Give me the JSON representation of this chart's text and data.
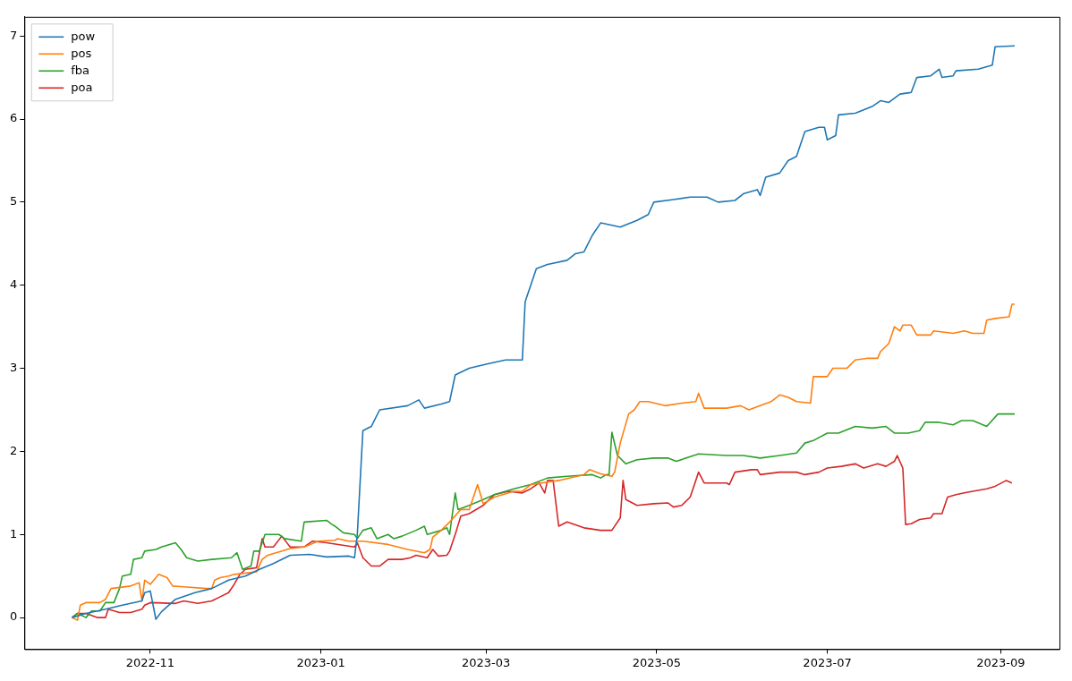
{
  "chart_data": {
    "type": "line",
    "xlim": [
      "2022-09-17",
      "2023-09-22"
    ],
    "ylim": [
      -0.38,
      7.23
    ],
    "xticks": [
      {
        "value": "2022-11-01",
        "label": "2022-11"
      },
      {
        "value": "2023-01-01",
        "label": "2023-01"
      },
      {
        "value": "2023-03-01",
        "label": "2023-03"
      },
      {
        "value": "2023-05-01",
        "label": "2023-05"
      },
      {
        "value": "2023-07-01",
        "label": "2023-07"
      },
      {
        "value": "2023-09-01",
        "label": "2023-09"
      }
    ],
    "yticks": [
      0,
      1,
      2,
      3,
      4,
      5,
      6,
      7
    ],
    "grid": false,
    "legend": "top left",
    "marker": "none",
    "line_style": "solid",
    "series": [
      {
        "name": "pow",
        "color": "#1f77b4",
        "x": [
          "2022-10-04",
          "2022-10-09",
          "2022-10-16",
          "2022-10-22",
          "2022-10-29",
          "2022-10-30",
          "2022-11-01",
          "2022-11-03",
          "2022-11-05",
          "2022-11-10",
          "2022-11-17",
          "2022-11-23",
          "2022-11-29",
          "2022-12-05",
          "2022-12-10",
          "2022-12-15",
          "2022-12-21",
          "2022-12-28",
          "2023-01-03",
          "2023-01-11",
          "2023-01-13",
          "2023-01-14",
          "2023-01-16",
          "2023-01-19",
          "2023-01-22",
          "2023-02-01",
          "2023-02-05",
          "2023-02-07",
          "2023-02-13",
          "2023-02-16",
          "2023-02-18",
          "2023-02-23",
          "2023-03-01",
          "2023-03-08",
          "2023-03-14",
          "2023-03-15",
          "2023-03-19",
          "2023-03-23",
          "2023-03-30",
          "2023-04-02",
          "2023-04-05",
          "2023-04-08",
          "2023-04-11",
          "2023-04-18",
          "2023-04-24",
          "2023-04-28",
          "2023-04-30",
          "2023-05-07",
          "2023-05-13",
          "2023-05-19",
          "2023-05-23",
          "2023-05-29",
          "2023-06-01",
          "2023-06-06",
          "2023-06-07",
          "2023-06-09",
          "2023-06-14",
          "2023-06-17",
          "2023-06-20",
          "2023-06-23",
          "2023-06-28",
          "2023-06-30",
          "2023-07-01",
          "2023-07-04",
          "2023-07-05",
          "2023-07-11",
          "2023-07-17",
          "2023-07-20",
          "2023-07-23",
          "2023-07-27",
          "2023-07-31",
          "2023-08-02",
          "2023-08-07",
          "2023-08-10",
          "2023-08-11",
          "2023-08-15",
          "2023-08-16",
          "2023-08-24",
          "2023-08-29",
          "2023-08-30",
          "2023-09-06"
        ],
        "values": [
          0,
          0.05,
          0.1,
          0.15,
          0.2,
          0.3,
          0.32,
          -0.02,
          0.07,
          0.22,
          0.3,
          0.35,
          0.45,
          0.5,
          0.58,
          0.65,
          0.75,
          0.76,
          0.73,
          0.74,
          0.72,
          1.0,
          2.25,
          2.3,
          2.5,
          2.55,
          2.62,
          2.52,
          2.57,
          2.6,
          2.92,
          3.0,
          3.05,
          3.1,
          3.1,
          3.8,
          4.2,
          4.25,
          4.3,
          4.38,
          4.4,
          4.6,
          4.75,
          4.7,
          4.78,
          4.85,
          5.0,
          5.03,
          5.06,
          5.06,
          5.0,
          5.02,
          5.1,
          5.15,
          5.08,
          5.3,
          5.35,
          5.5,
          5.55,
          5.85,
          5.9,
          5.9,
          5.75,
          5.8,
          6.05,
          6.07,
          6.15,
          6.22,
          6.2,
          6.3,
          6.32,
          6.5,
          6.52,
          6.6,
          6.5,
          6.52,
          6.58,
          6.6,
          6.65,
          6.87,
          6.88
        ]
      },
      {
        "name": "pos",
        "color": "#ff7f0e",
        "x": [
          "2022-10-04",
          "2022-10-06",
          "2022-10-07",
          "2022-10-09",
          "2022-10-14",
          "2022-10-16",
          "2022-10-18",
          "2022-10-25",
          "2022-10-28",
          "2022-10-29",
          "2022-10-30",
          "2022-11-01",
          "2022-11-04",
          "2022-11-07",
          "2022-11-09",
          "2022-11-13",
          "2022-11-21",
          "2022-11-23",
          "2022-11-24",
          "2022-11-26",
          "2022-11-29",
          "2022-12-01",
          "2022-12-09",
          "2022-12-11",
          "2022-12-13",
          "2022-12-21",
          "2022-12-26",
          "2022-12-31",
          "2023-01-06",
          "2023-01-07",
          "2023-01-11",
          "2023-01-16",
          "2023-01-25",
          "2023-02-01",
          "2023-02-07",
          "2023-02-09",
          "2023-02-10",
          "2023-02-13",
          "2023-02-16",
          "2023-02-20",
          "2023-02-23",
          "2023-02-26",
          "2023-02-28",
          "2023-03-04",
          "2023-03-11",
          "2023-03-14",
          "2023-03-17",
          "2023-03-27",
          "2023-04-05",
          "2023-04-07",
          "2023-04-11",
          "2023-04-15",
          "2023-04-16",
          "2023-04-18",
          "2023-04-21",
          "2023-04-23",
          "2023-04-25",
          "2023-04-28",
          "2023-05-04",
          "2023-05-10",
          "2023-05-15",
          "2023-05-16",
          "2023-05-18",
          "2023-05-26",
          "2023-05-31",
          "2023-06-03",
          "2023-06-07",
          "2023-06-11",
          "2023-06-14",
          "2023-06-17",
          "2023-06-20",
          "2023-06-25",
          "2023-06-26",
          "2023-07-01",
          "2023-07-03",
          "2023-07-08",
          "2023-07-11",
          "2023-07-15",
          "2023-07-19",
          "2023-07-20",
          "2023-07-23",
          "2023-07-25",
          "2023-07-27",
          "2023-07-28",
          "2023-07-31",
          "2023-08-02",
          "2023-08-07",
          "2023-08-08",
          "2023-08-15",
          "2023-08-19",
          "2023-08-22",
          "2023-08-26",
          "2023-08-27",
          "2023-08-30",
          "2023-09-04",
          "2023-09-05",
          "2023-09-06"
        ],
        "values": [
          0,
          -0.03,
          0.15,
          0.18,
          0.18,
          0.22,
          0.35,
          0.38,
          0.42,
          0.2,
          0.45,
          0.4,
          0.52,
          0.48,
          0.38,
          0.37,
          0.35,
          0.35,
          0.45,
          0.48,
          0.5,
          0.52,
          0.55,
          0.7,
          0.75,
          0.83,
          0.85,
          0.92,
          0.93,
          0.95,
          0.92,
          0.92,
          0.88,
          0.82,
          0.78,
          0.82,
          0.97,
          1.05,
          1.15,
          1.3,
          1.3,
          1.6,
          1.37,
          1.45,
          1.52,
          1.52,
          1.6,
          1.65,
          1.72,
          1.78,
          1.73,
          1.7,
          1.75,
          2.1,
          2.45,
          2.5,
          2.6,
          2.6,
          2.55,
          2.58,
          2.6,
          2.7,
          2.52,
          2.52,
          2.55,
          2.5,
          2.55,
          2.6,
          2.68,
          2.65,
          2.6,
          2.58,
          2.9,
          2.9,
          3.0,
          3.0,
          3.1,
          3.12,
          3.12,
          3.2,
          3.3,
          3.5,
          3.45,
          3.52,
          3.52,
          3.4,
          3.4,
          3.45,
          3.42,
          3.45,
          3.42,
          3.42,
          3.58,
          3.6,
          3.62,
          3.77,
          3.77
        ]
      },
      {
        "name": "fba",
        "color": "#2ca02c",
        "x": [
          "2022-10-04",
          "2022-10-06",
          "2022-10-09",
          "2022-10-11",
          "2022-10-14",
          "2022-10-16",
          "2022-10-19",
          "2022-10-21",
          "2022-10-22",
          "2022-10-25",
          "2022-10-26",
          "2022-10-29",
          "2022-10-30",
          "2022-11-03",
          "2022-11-05",
          "2022-11-10",
          "2022-11-12",
          "2022-11-14",
          "2022-11-18",
          "2022-11-23",
          "2022-11-30",
          "2022-12-02",
          "2022-12-04",
          "2022-12-07",
          "2022-12-08",
          "2022-12-10",
          "2022-12-12",
          "2022-12-17",
          "2022-12-19",
          "2022-12-25",
          "2022-12-26",
          "2023-01-03",
          "2023-01-05",
          "2023-01-06",
          "2023-01-09",
          "2023-01-13",
          "2023-01-14",
          "2023-01-16",
          "2023-01-19",
          "2023-01-21",
          "2023-01-25",
          "2023-01-27",
          "2023-01-30",
          "2023-02-04",
          "2023-02-07",
          "2023-02-08",
          "2023-02-13",
          "2023-02-15",
          "2023-02-16",
          "2023-02-18",
          "2023-02-19",
          "2023-02-23",
          "2023-02-28",
          "2023-03-04",
          "2023-03-11",
          "2023-03-17",
          "2023-03-23",
          "2023-03-30",
          "2023-04-08",
          "2023-04-11",
          "2023-04-13",
          "2023-04-14",
          "2023-04-15",
          "2023-04-17",
          "2023-04-20",
          "2023-04-24",
          "2023-04-30",
          "2023-05-05",
          "2023-05-08",
          "2023-05-16",
          "2023-05-26",
          "2023-06-01",
          "2023-06-07",
          "2023-06-14",
          "2023-06-20",
          "2023-06-23",
          "2023-06-26",
          "2023-07-01",
          "2023-07-05",
          "2023-07-11",
          "2023-07-17",
          "2023-07-22",
          "2023-07-25",
          "2023-07-30",
          "2023-08-03",
          "2023-08-05",
          "2023-08-10",
          "2023-08-15",
          "2023-08-18",
          "2023-08-22",
          "2023-08-27",
          "2023-08-31",
          "2023-09-06"
        ],
        "values": [
          0,
          0.05,
          0,
          0.08,
          0.08,
          0.18,
          0.18,
          0.35,
          0.5,
          0.52,
          0.7,
          0.72,
          0.8,
          0.82,
          0.85,
          0.9,
          0.82,
          0.72,
          0.68,
          0.7,
          0.72,
          0.78,
          0.58,
          0.62,
          0.8,
          0.8,
          1.0,
          1.0,
          0.95,
          0.92,
          1.15,
          1.17,
          1.12,
          1.1,
          1.02,
          1.0,
          0.95,
          1.05,
          1.08,
          0.95,
          1.0,
          0.95,
          0.98,
          1.05,
          1.1,
          1.0,
          1.05,
          1.08,
          1.0,
          1.5,
          1.3,
          1.35,
          1.42,
          1.48,
          1.55,
          1.6,
          1.68,
          1.7,
          1.72,
          1.68,
          1.72,
          1.72,
          2.23,
          1.95,
          1.85,
          1.9,
          1.92,
          1.92,
          1.88,
          1.97,
          1.95,
          1.95,
          1.92,
          1.95,
          1.98,
          2.1,
          2.13,
          2.22,
          2.22,
          2.3,
          2.28,
          2.3,
          2.22,
          2.22,
          2.25,
          2.35,
          2.35,
          2.32,
          2.37,
          2.37,
          2.3,
          2.45,
          2.45
        ]
      },
      {
        "name": "poa",
        "color": "#d62728",
        "x": [
          "2022-10-04",
          "2022-10-06",
          "2022-10-09",
          "2022-10-13",
          "2022-10-16",
          "2022-10-17",
          "2022-10-21",
          "2022-10-25",
          "2022-10-29",
          "2022-10-30",
          "2022-11-01",
          "2022-11-10",
          "2022-11-13",
          "2022-11-18",
          "2022-11-23",
          "2022-11-26",
          "2022-11-29",
          "2022-12-01",
          "2022-12-03",
          "2022-12-05",
          "2022-12-09",
          "2022-12-11",
          "2022-12-12",
          "2022-12-15",
          "2022-12-18",
          "2022-12-21",
          "2022-12-26",
          "2022-12-29",
          "2023-01-03",
          "2023-01-13",
          "2023-01-14",
          "2023-01-16",
          "2023-01-19",
          "2023-01-22",
          "2023-01-25",
          "2023-01-30",
          "2023-02-02",
          "2023-02-04",
          "2023-02-08",
          "2023-02-10",
          "2023-02-12",
          "2023-02-15",
          "2023-02-16",
          "2023-02-18",
          "2023-02-20",
          "2023-02-23",
          "2023-02-28",
          "2023-03-04",
          "2023-03-09",
          "2023-03-14",
          "2023-03-17",
          "2023-03-20",
          "2023-03-22",
          "2023-03-23",
          "2023-03-25",
          "2023-03-27",
          "2023-03-30",
          "2023-04-05",
          "2023-04-11",
          "2023-04-15",
          "2023-04-18",
          "2023-04-19",
          "2023-04-20",
          "2023-04-24",
          "2023-04-30",
          "2023-05-05",
          "2023-05-07",
          "2023-05-10",
          "2023-05-13",
          "2023-05-16",
          "2023-05-18",
          "2023-05-26",
          "2023-05-27",
          "2023-05-29",
          "2023-06-04",
          "2023-06-06",
          "2023-06-07",
          "2023-06-14",
          "2023-06-20",
          "2023-06-23",
          "2023-06-28",
          "2023-07-01",
          "2023-07-06",
          "2023-07-11",
          "2023-07-14",
          "2023-07-19",
          "2023-07-22",
          "2023-07-25",
          "2023-07-26",
          "2023-07-28",
          "2023-07-29",
          "2023-07-31",
          "2023-08-03",
          "2023-08-07",
          "2023-08-08",
          "2023-08-11",
          "2023-08-13",
          "2023-08-16",
          "2023-08-19",
          "2023-08-22",
          "2023-08-27",
          "2023-08-30",
          "2023-09-03",
          "2023-09-05"
        ],
        "values": [
          0,
          0.05,
          0.05,
          0,
          0,
          0.1,
          0.06,
          0.06,
          0.1,
          0.15,
          0.18,
          0.17,
          0.2,
          0.17,
          0.2,
          0.25,
          0.3,
          0.4,
          0.52,
          0.58,
          0.6,
          0.95,
          0.85,
          0.85,
          0.98,
          0.85,
          0.85,
          0.92,
          0.9,
          0.85,
          0.9,
          0.72,
          0.62,
          0.62,
          0.7,
          0.7,
          0.72,
          0.75,
          0.72,
          0.82,
          0.74,
          0.75,
          0.8,
          1.0,
          1.22,
          1.25,
          1.35,
          1.48,
          1.52,
          1.5,
          1.55,
          1.62,
          1.5,
          1.65,
          1.65,
          1.1,
          1.15,
          1.08,
          1.05,
          1.05,
          1.2,
          1.65,
          1.42,
          1.35,
          1.37,
          1.38,
          1.33,
          1.35,
          1.45,
          1.75,
          1.62,
          1.62,
          1.6,
          1.75,
          1.78,
          1.78,
          1.72,
          1.75,
          1.75,
          1.72,
          1.75,
          1.8,
          1.82,
          1.85,
          1.8,
          1.85,
          1.82,
          1.88,
          1.95,
          1.8,
          1.12,
          1.13,
          1.18,
          1.2,
          1.25,
          1.25,
          1.45,
          1.48,
          1.5,
          1.52,
          1.55,
          1.58,
          1.65,
          1.62
        ]
      }
    ]
  }
}
